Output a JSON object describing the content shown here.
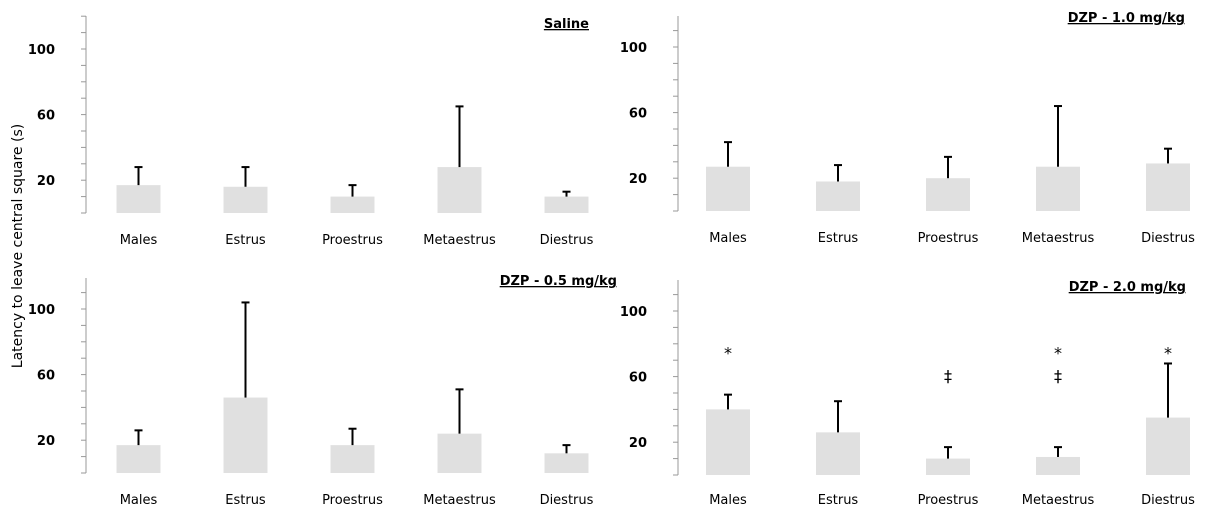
{
  "y_axis_label": "Latency to leave central square (s)",
  "chart_data": [
    {
      "type": "bar",
      "title": "Saline",
      "categories": [
        "Males",
        "Estrus",
        "Proestrus",
        "Metaestrus",
        "Diestrus"
      ],
      "values": [
        17,
        16,
        10,
        28,
        10
      ],
      "error": [
        11,
        12,
        7,
        37,
        3
      ],
      "annotations": [
        "",
        "",
        "",
        "",
        ""
      ],
      "yticks": [
        20,
        60,
        100
      ],
      "ylim": [
        0,
        120
      ],
      "bar_color": "#e0e0e0"
    },
    {
      "type": "bar",
      "title": "DZP - 1.0 mg/kg",
      "categories": [
        "Males",
        "Estrus",
        "Proestrus",
        "Metaestrus",
        "Diestrus"
      ],
      "values": [
        27,
        18,
        20,
        27,
        29
      ],
      "error": [
        15,
        10,
        13,
        37,
        9
      ],
      "annotations": [
        "",
        "",
        "",
        "",
        ""
      ],
      "yticks": [
        20,
        60,
        100
      ],
      "ylim": [
        0,
        120
      ],
      "bar_color": "#e0e0e0"
    },
    {
      "type": "bar",
      "title": "DZP - 0.5 mg/kg",
      "categories": [
        "Males",
        "Estrus",
        "Proestrus",
        "Metaestrus",
        "Diestrus"
      ],
      "values": [
        17,
        46,
        17,
        24,
        12
      ],
      "error": [
        9,
        58,
        10,
        27,
        5
      ],
      "annotations": [
        "",
        "",
        "",
        "",
        ""
      ],
      "yticks": [
        20,
        60,
        100
      ],
      "ylim": [
        0,
        120
      ],
      "bar_color": "#e0e0e0"
    },
    {
      "type": "bar",
      "title": "DZP - 2.0 mg/kg",
      "categories": [
        "Males",
        "Estrus",
        "Proestrus",
        "Metaestrus",
        "Diestrus"
      ],
      "values": [
        40,
        26,
        10,
        11,
        35
      ],
      "error": [
        9,
        19,
        7,
        6,
        33
      ],
      "annotations": [
        "*",
        "",
        "‡",
        "*\n‡",
        "*"
      ],
      "yticks": [
        20,
        60,
        100
      ],
      "ylim": [
        0,
        120
      ],
      "bar_color": "#e0e0e0"
    }
  ]
}
